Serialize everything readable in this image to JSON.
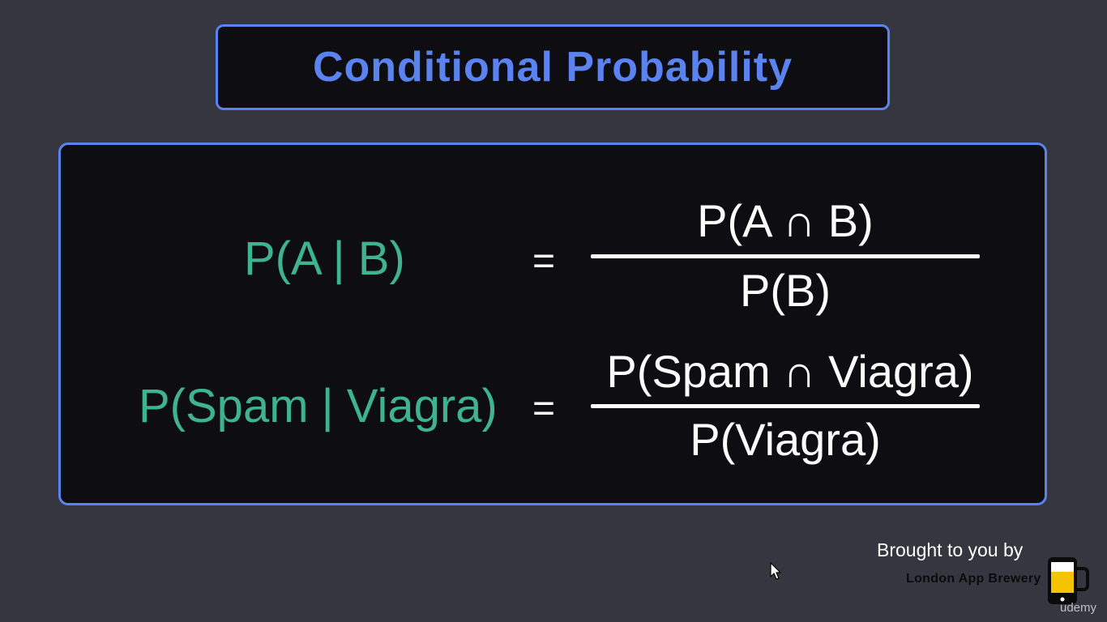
{
  "title": "Conditional Probability",
  "formulas": [
    {
      "lhs": "P(A | B)",
      "equals": "=",
      "numerator": "P(A ∩ B)",
      "denominator": "P(B)"
    },
    {
      "lhs": "P(Spam | Viagra)",
      "equals": "=",
      "numerator": "P(Spam ∩ Viagra)",
      "denominator": "P(Viagra)"
    }
  ],
  "footer": {
    "credit": "Brought to you by",
    "brand": "London App Brewery",
    "watermark": "udemy"
  },
  "colors": {
    "background": "#363640",
    "accent": "#5b83f0",
    "lhs": "#3fb38f",
    "panel": "#0e0e12",
    "text": "#ffffff"
  }
}
